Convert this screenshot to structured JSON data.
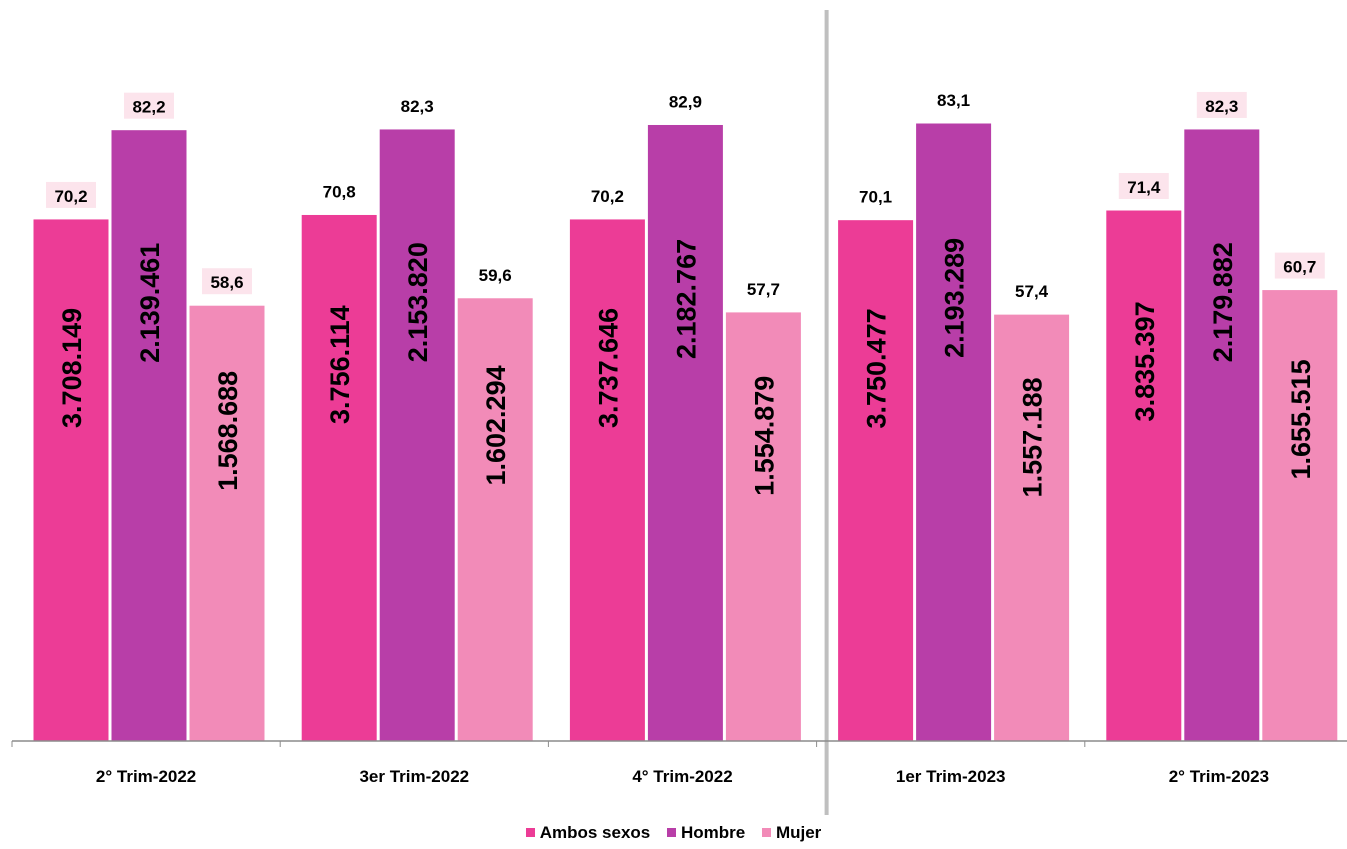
{
  "chart_data": {
    "type": "bar",
    "title": "",
    "xlabel": "",
    "ylabel": "",
    "ylim": [
      0,
      100
    ],
    "categories": [
      "2° Trim-2022",
      "3er Trim-2022",
      "4° Trim-2022",
      "1er Trim-2023",
      "2° Trim-2023"
    ],
    "series": [
      {
        "name": "Ambos sexos",
        "color": "#EC3C96",
        "values": [
          70.2,
          70.8,
          70.2,
          70.1,
          71.4
        ],
        "value_labels": [
          "70,2",
          "70,8",
          "70,2",
          "70,1",
          "71,4"
        ],
        "count_labels": [
          "3.708.149",
          "3.756.114",
          "3.737.646",
          "3.750.477",
          "3.835.397"
        ],
        "highlighted": [
          true,
          false,
          false,
          false,
          true
        ]
      },
      {
        "name": "Hombre",
        "color": "#B83EA8",
        "values": [
          82.2,
          82.3,
          82.9,
          83.1,
          82.3
        ],
        "value_labels": [
          "82,2",
          "82,3",
          "82,9",
          "83,1",
          "82,3"
        ],
        "count_labels": [
          "2.139.461",
          "2.153.820",
          "2.182.767",
          "2.193.289",
          "2.179.882"
        ],
        "highlighted": [
          true,
          false,
          false,
          false,
          true
        ]
      },
      {
        "name": "Mujer",
        "color": "#F28BB8",
        "values": [
          58.6,
          59.6,
          57.7,
          57.4,
          60.7
        ],
        "value_labels": [
          "58,6",
          "59,6",
          "57,7",
          "57,4",
          "60,7"
        ],
        "count_labels": [
          "1.568.688",
          "1.602.294",
          "1.554.879",
          "1.557.188",
          "1.655.515"
        ],
        "highlighted": [
          true,
          false,
          false,
          false,
          true
        ]
      }
    ],
    "label_highlight_color": "#FCE4EC",
    "separator_after_category": 2,
    "separator_color": "#BFBFBF",
    "axis_color": "#8C8C8C",
    "grid": false,
    "legend_position": "bottom"
  }
}
